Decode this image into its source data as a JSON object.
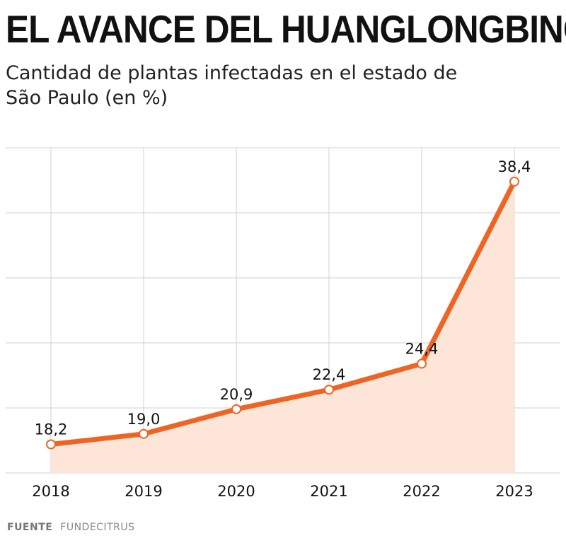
{
  "title": "EL AVANCE DEL HUANGLONGBING",
  "subtitle": "Cantidad de plantas infectadas en el estado de São Paulo (en %)",
  "source": {
    "label": "FUENTE",
    "name": "FUNDECITRUS"
  },
  "colors": {
    "line": "#ef6425",
    "area": "#fde6d8",
    "grid": "#d0d0d0",
    "marker_fill": "#ffffff"
  },
  "chart_data": {
    "type": "area",
    "title": "EL AVANCE DEL HUANGLONGBING",
    "subtitle": "Cantidad de plantas infectadas en el estado de São Paulo (en %)",
    "xlabel": "",
    "ylabel": "",
    "categories": [
      "2018",
      "2019",
      "2020",
      "2021",
      "2022",
      "2023"
    ],
    "values": [
      18.2,
      19.0,
      20.9,
      22.4,
      24.4,
      38.4
    ],
    "value_labels": [
      "18,2",
      "19,0",
      "20,9",
      "22,4",
      "24,4",
      "38,4"
    ],
    "ylim": [
      16,
      41
    ],
    "grid": true
  }
}
